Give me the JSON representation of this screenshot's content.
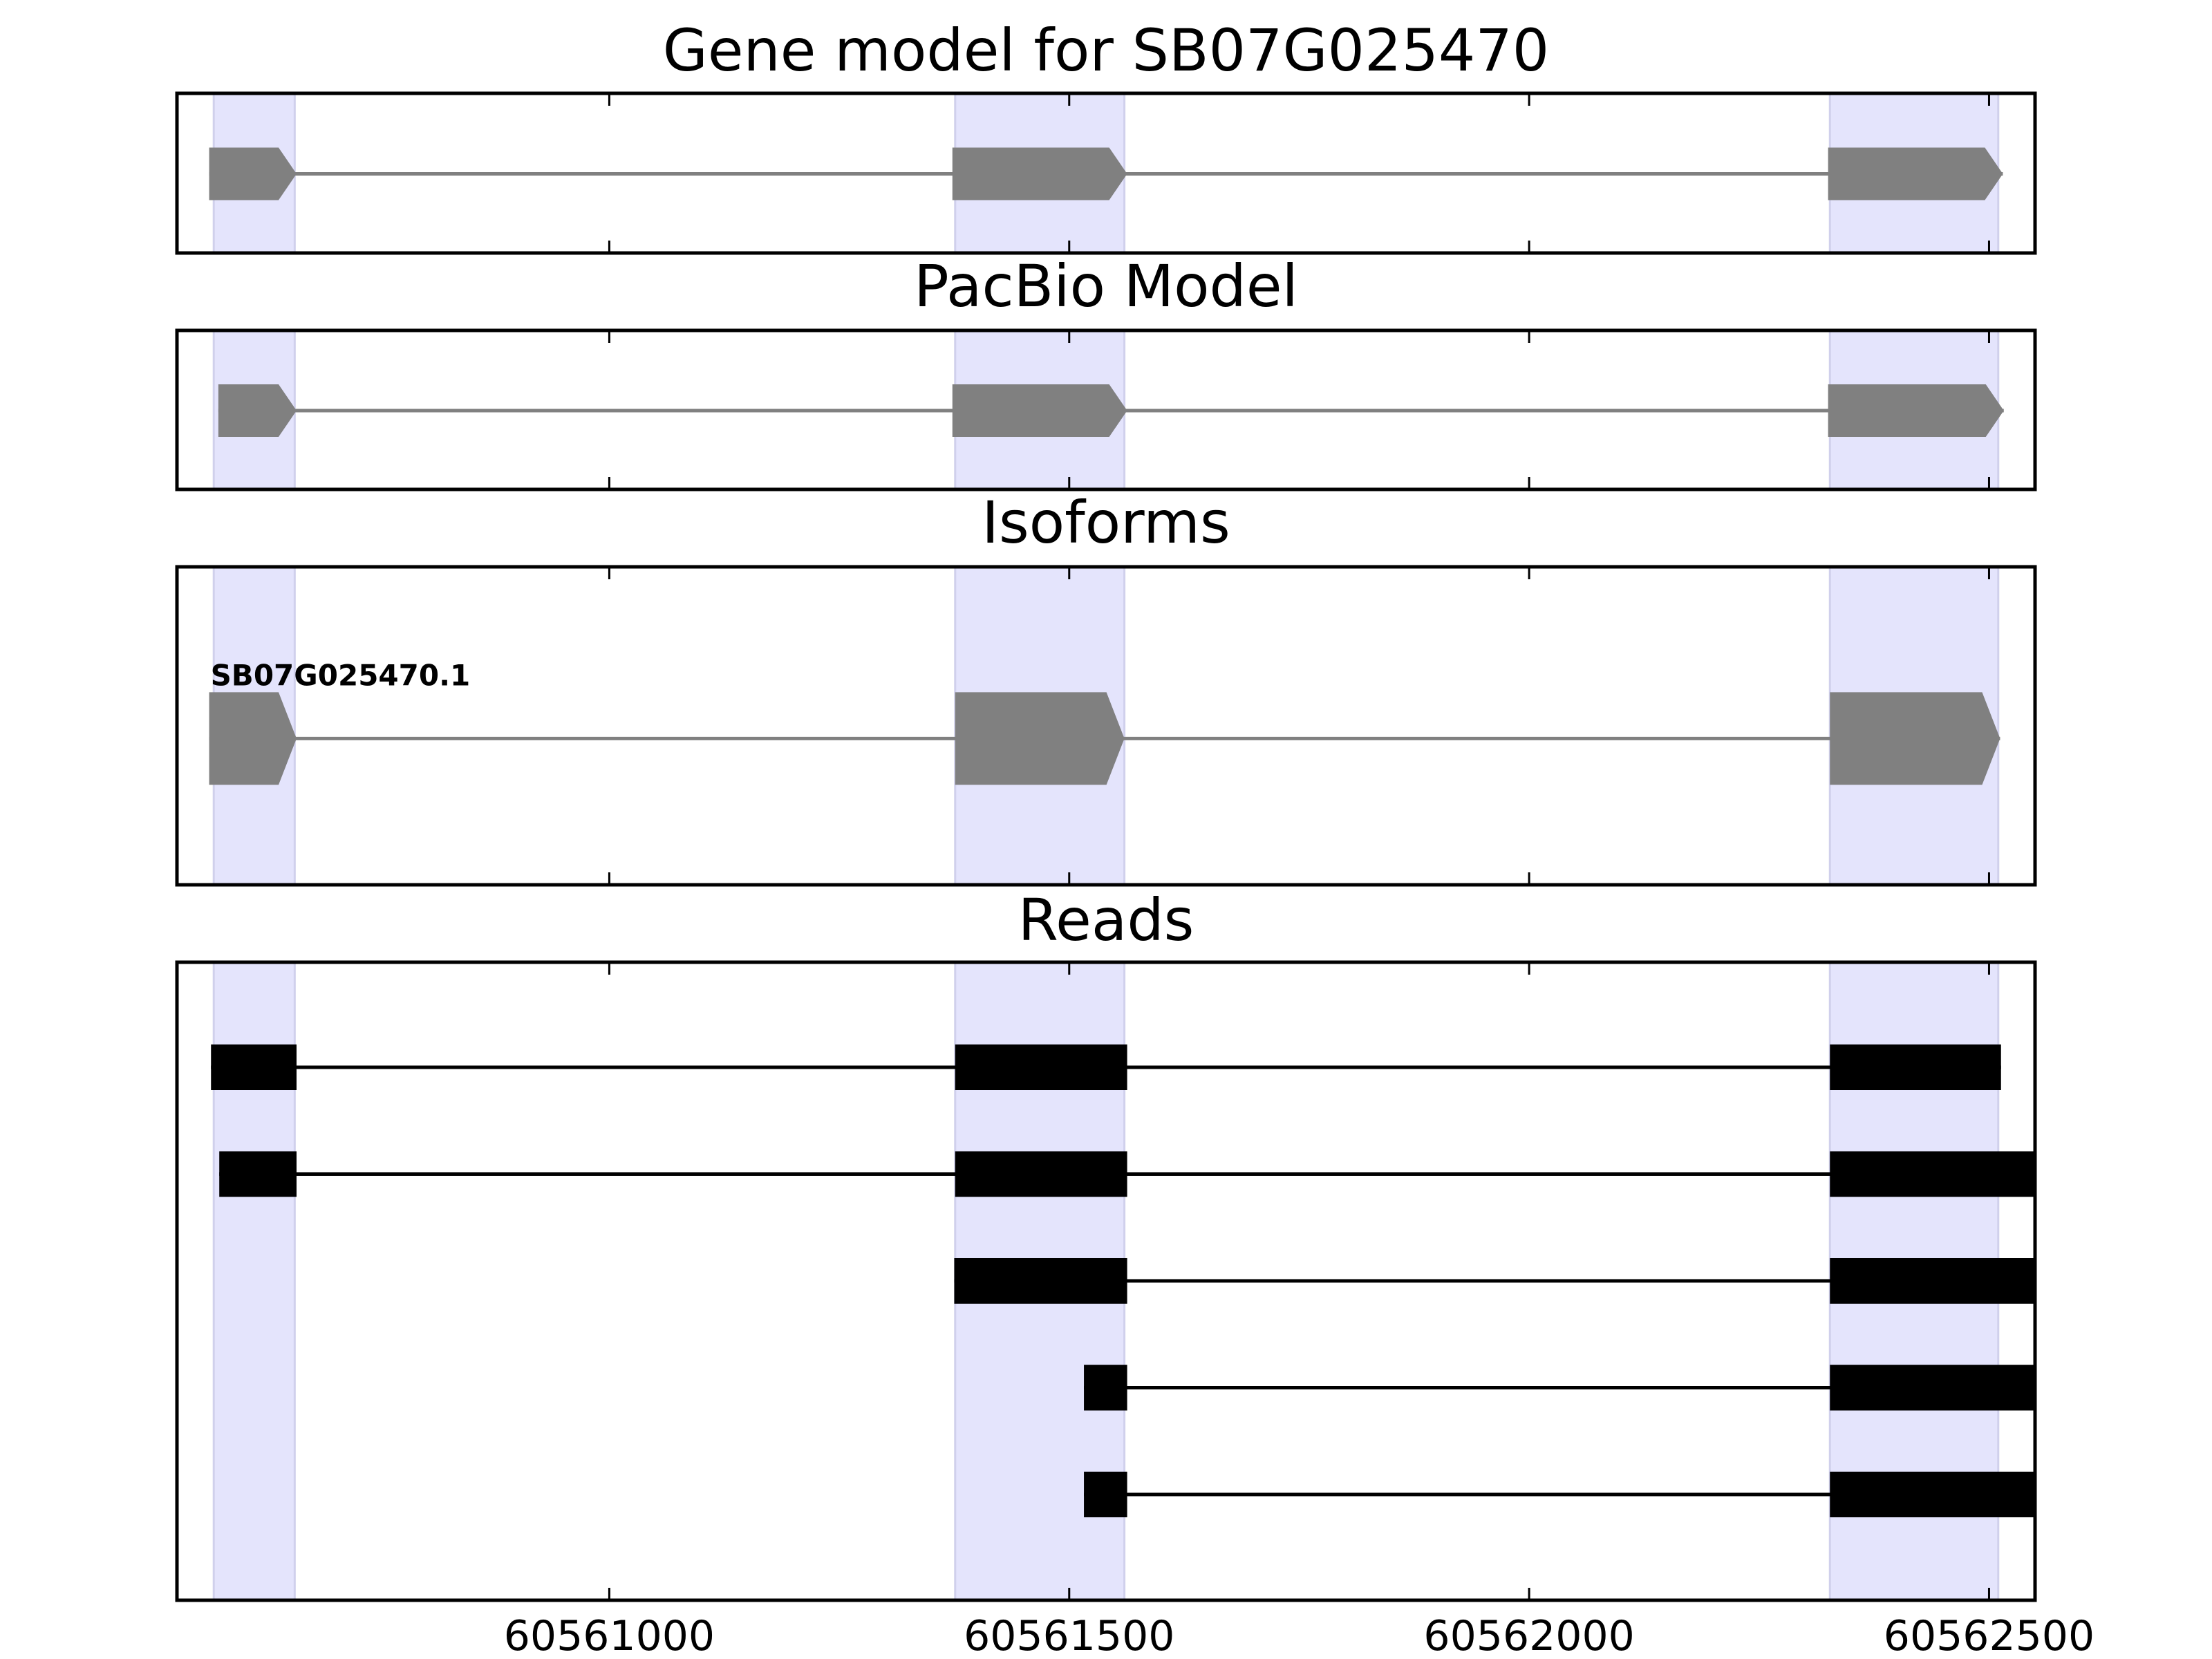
{
  "chart_data": {
    "type": "gene-track",
    "x_range": [
      60560530,
      60562550
    ],
    "x_ticks": [
      60561000,
      60561500,
      60562000,
      60562500
    ],
    "x_tick_labels": [
      "60561000",
      "60561500",
      "60562000",
      "60562500"
    ],
    "highlight_regions": [
      [
        60560570,
        60560658
      ],
      [
        60561376,
        60561560
      ],
      [
        60562327,
        60562510
      ]
    ],
    "panels": [
      {
        "title": "Gene model for SB07G025470",
        "kind": "model",
        "features": [
          {
            "strand": "+",
            "exons": [
              [
                60560565,
                60560660
              ],
              [
                60561373,
                60561563
              ],
              [
                60562325,
                60562515
              ]
            ]
          }
        ]
      },
      {
        "title": "PacBio Model",
        "kind": "model",
        "features": [
          {
            "strand": "+",
            "exons": [
              [
                60560575,
                60560660
              ],
              [
                60561373,
                60561563
              ],
              [
                60562325,
                60562516
              ]
            ]
          }
        ]
      },
      {
        "title": "Isoforms",
        "kind": "isoforms",
        "features": [
          {
            "label": "SB07G025470.1",
            "strand": "+",
            "exons": [
              [
                60560565,
                60560660
              ],
              [
                60561376,
                60561560
              ],
              [
                60562327,
                60562512
              ]
            ]
          }
        ]
      },
      {
        "title": "Reads",
        "kind": "reads",
        "features": [
          {
            "exons": [
              [
                60560567,
                60560660
              ],
              [
                60561376,
                60561563
              ],
              [
                60562327,
                60562513
              ]
            ]
          },
          {
            "exons": [
              [
                60560576,
                60560660
              ],
              [
                60561376,
                60561563
              ],
              [
                60562327,
                60562550
              ]
            ]
          },
          {
            "exons": [
              [
                60561375,
                60561563
              ],
              [
                60562327,
                60562550
              ]
            ]
          },
          {
            "exons": [
              [
                60561516,
                60561563
              ],
              [
                60562327,
                60562550
              ]
            ]
          },
          {
            "exons": [
              [
                60561516,
                60561563
              ],
              [
                60562327,
                60562550
              ]
            ]
          }
        ]
      }
    ],
    "colors": {
      "highlight": "#e4e4fc",
      "model_fill": "#808080",
      "read_fill": "#000000",
      "frame": "#000000"
    }
  }
}
